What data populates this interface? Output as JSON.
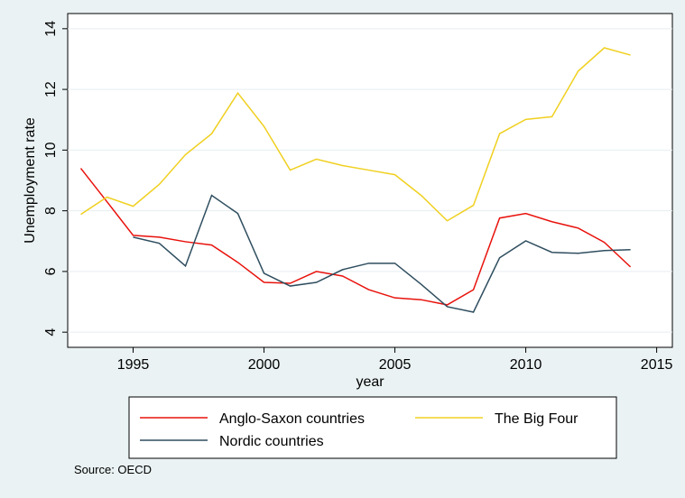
{
  "chart_data": {
    "type": "line",
    "x_label": "year",
    "y_label": "Unemployment rate",
    "note": "Source: OECD",
    "x": [
      1993,
      1994,
      1995,
      1996,
      1997,
      1998,
      1999,
      2000,
      2001,
      2002,
      2003,
      2004,
      2005,
      2006,
      2007,
      2008,
      2009,
      2010,
      2011,
      2012,
      2013,
      2014
    ],
    "series": [
      {
        "name": "Anglo-Saxon countries",
        "color": "#e8120c",
        "values": [
          9.4,
          8.3,
          7.19,
          7.13,
          6.98,
          6.87,
          6.3,
          5.64,
          5.61,
          6.0,
          5.85,
          5.4,
          5.13,
          5.07,
          4.9,
          5.4,
          7.76,
          7.91,
          7.64,
          7.43,
          6.96,
          6.15
        ]
      },
      {
        "name": "The Big Four",
        "color": "#f0d020",
        "values": [
          7.88,
          8.45,
          8.15,
          8.87,
          9.85,
          10.54,
          11.88,
          10.78,
          9.34,
          9.7,
          9.49,
          9.34,
          9.19,
          8.51,
          7.67,
          8.18,
          10.54,
          11.01,
          11.1,
          12.6,
          13.37,
          13.13
        ]
      },
      {
        "name": "Nordic countries",
        "color": "#2f4e5f",
        "values": [
          null,
          null,
          7.13,
          6.93,
          6.18,
          8.51,
          7.91,
          5.94,
          5.52,
          5.64,
          6.06,
          6.27,
          6.27,
          5.58,
          4.84,
          4.66,
          6.45,
          7.01,
          6.63,
          6.6,
          6.69,
          6.72
        ]
      }
    ],
    "xlim": [
      1992.5,
      2015.6
    ],
    "ylim": [
      3.5,
      14.5
    ],
    "xticks": [
      1995,
      2000,
      2005,
      2010,
      2015
    ],
    "yticks": [
      4,
      6,
      8,
      10,
      12,
      14
    ],
    "grid": true
  }
}
